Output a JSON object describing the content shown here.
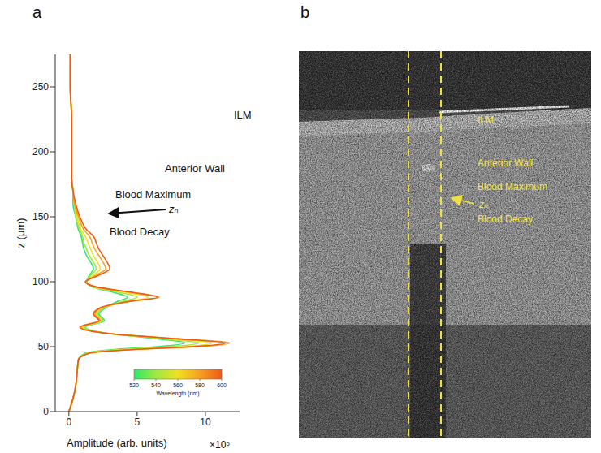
{
  "panel_labels": [
    "a",
    "b"
  ],
  "chart_data": {
    "type": "line",
    "x_label": "Amplitude (arb. units)",
    "x_multiplier": "×10⁵",
    "y_label": "z (μm)",
    "xlim": [
      -1,
      12.5
    ],
    "xticks": [
      0,
      5,
      10
    ],
    "ylim": [
      0,
      275
    ],
    "yticks": [
      0,
      50,
      100,
      150,
      200,
      250
    ],
    "y_reversed": true,
    "y": [
      0,
      10,
      20,
      30,
      40,
      45,
      48,
      50,
      53,
      56,
      60,
      65,
      70,
      75,
      80,
      85,
      88,
      92,
      96,
      100,
      105,
      110,
      115,
      120,
      125,
      130,
      135,
      140,
      150,
      160,
      170,
      180,
      200,
      225,
      250,
      275
    ],
    "series": [
      {
        "wavelength": 520,
        "color": "#2ee86a",
        "values": [
          0,
          0.3,
          0.5,
          0.6,
          0.7,
          1.2,
          3.5,
          6.5,
          8.5,
          6.5,
          3,
          1.2,
          2.6,
          2.2,
          2.7,
          3.6,
          4.3,
          3.2,
          1.7,
          1.3,
          1.5,
          1.8,
          1.6,
          1.3,
          1.1,
          1.0,
          0.9,
          0.7,
          0.5,
          0.3,
          0.3,
          0.2,
          0.2,
          0.2,
          0.1,
          0.1
        ]
      },
      {
        "wavelength": 540,
        "color": "#a0e840",
        "values": [
          0,
          0.3,
          0.5,
          0.6,
          0.7,
          1.3,
          4,
          7.5,
          9.5,
          7,
          3,
          1.1,
          2.5,
          2.1,
          2.6,
          4.0,
          5.0,
          3.6,
          1.8,
          1.3,
          1.6,
          2.0,
          1.8,
          1.5,
          1.3,
          1.1,
          1.0,
          0.8,
          0.5,
          0.4,
          0.3,
          0.2,
          0.2,
          0.2,
          0.1,
          0.1
        ]
      },
      {
        "wavelength": 560,
        "color": "#f0e020",
        "values": [
          0,
          0.3,
          0.5,
          0.6,
          0.7,
          1.4,
          4.5,
          8.5,
          10.5,
          7.5,
          3,
          1.0,
          2.4,
          2.0,
          2.5,
          4.4,
          5.8,
          4.0,
          1.9,
          1.3,
          1.8,
          2.3,
          2.1,
          1.8,
          1.6,
          1.4,
          1.2,
          0.9,
          0.6,
          0.4,
          0.3,
          0.2,
          0.2,
          0.2,
          0.1,
          0.1
        ]
      },
      {
        "wavelength": 580,
        "color": "#f8a020",
        "values": [
          0,
          0.3,
          0.5,
          0.6,
          0.7,
          1.5,
          5,
          9.5,
          11.8,
          8,
          3,
          0.9,
          2.3,
          1.9,
          2.4,
          4.6,
          6.6,
          4.4,
          2,
          1.3,
          2.0,
          2.7,
          2.5,
          2.2,
          1.9,
          1.7,
          1.5,
          1.1,
          0.7,
          0.4,
          0.3,
          0.2,
          0.2,
          0.2,
          0.1,
          0.1
        ]
      },
      {
        "wavelength": 600,
        "color": "#f05a14",
        "values": [
          0,
          0.3,
          0.5,
          0.6,
          0.7,
          1.5,
          5,
          9,
          11.5,
          8,
          3,
          0.8,
          2.2,
          1.8,
          2.3,
          4.5,
          6.5,
          4.5,
          2,
          1.2,
          2.2,
          3.0,
          2.8,
          2.5,
          2.2,
          2.0,
          1.8,
          1.3,
          0.8,
          0.5,
          0.3,
          0.2,
          0.2,
          0.2,
          0.1,
          0.1
        ]
      }
    ],
    "annotations": [
      "ILM",
      "Anterior Wall",
      "Blood Maximum",
      "zₙ",
      "Blood Decay"
    ],
    "colorbar": {
      "label": "Wavelength (nm)",
      "range": [
        520,
        600
      ],
      "ticks": [
        520,
        540,
        560,
        580,
        600
      ]
    },
    "legend": false,
    "grid": false
  },
  "image": {
    "labels": [
      "ILM",
      "Anterior Wall",
      "Blood Maximum",
      "zₙ",
      "Blood Decay"
    ]
  }
}
